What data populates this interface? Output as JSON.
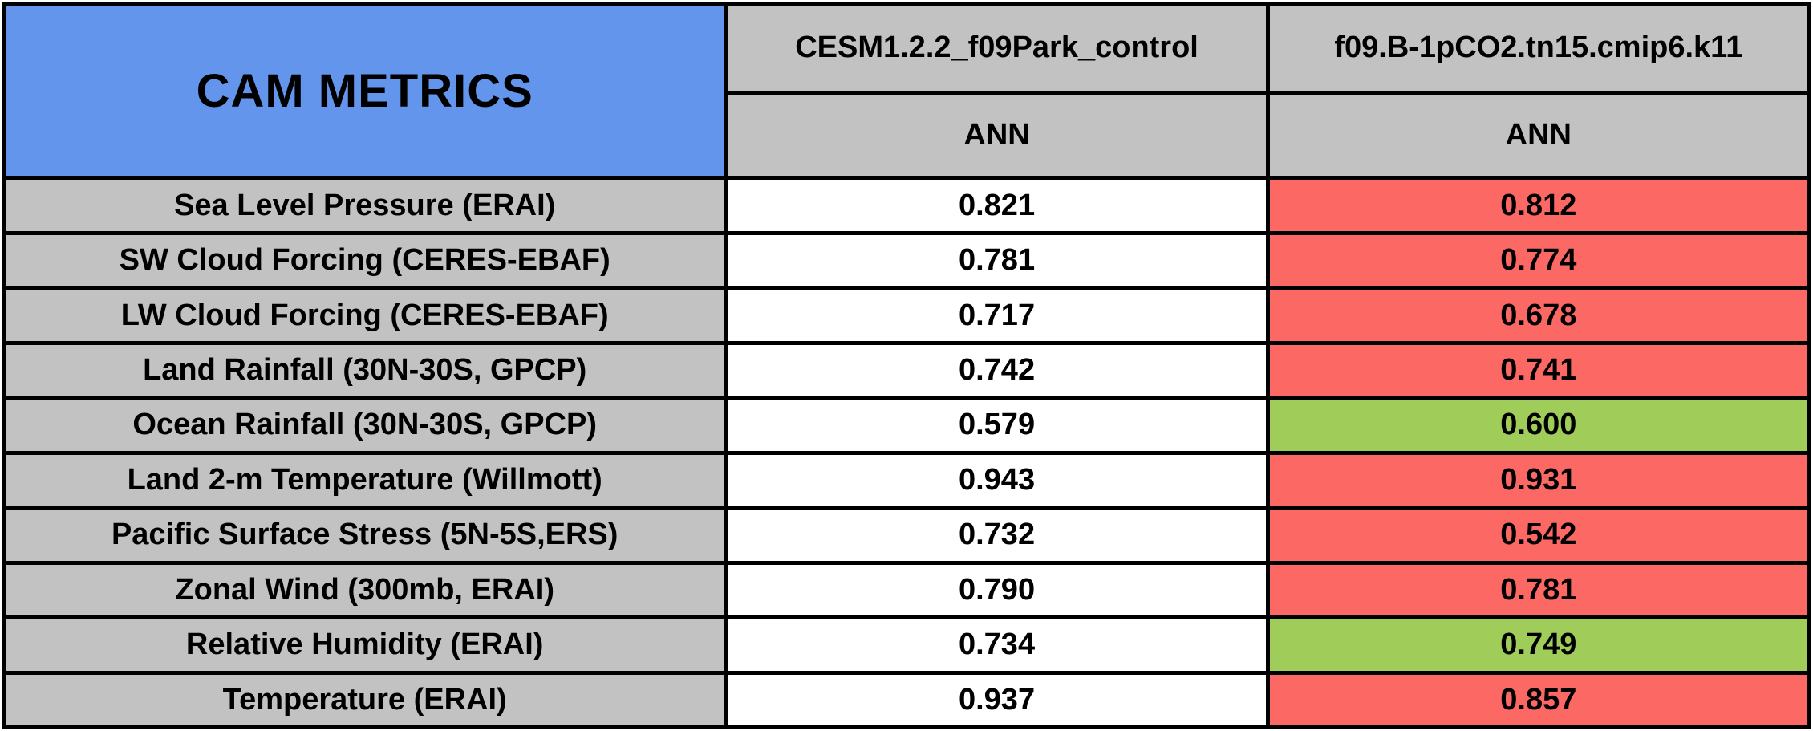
{
  "colors": {
    "blue_header": "#6495ED",
    "gray_header": "#C2C2C2",
    "white": "#FFFFFF",
    "red": "#FC6964",
    "green": "#A0CC5A",
    "border": "#000000"
  },
  "chart_data": {
    "type": "table",
    "title": "CAM METRICS",
    "legend_note_colors": {
      "worse_than_control": "red",
      "better_than_control": "green"
    },
    "columns": [
      {
        "model": "CESM1.2.2_f09Park_control",
        "season": "ANN"
      },
      {
        "model": "f09.B-1pCO2.tn15.cmip6.k11",
        "season": "ANN"
      }
    ],
    "rows": [
      {
        "metric": "Sea Level Pressure (ERAI)",
        "control_ann": "0.821",
        "experiment_ann": "0.812",
        "experiment_color": "red"
      },
      {
        "metric": "SW Cloud Forcing (CERES-EBAF)",
        "control_ann": "0.781",
        "experiment_ann": "0.774",
        "experiment_color": "red"
      },
      {
        "metric": "LW Cloud Forcing (CERES-EBAF)",
        "control_ann": "0.717",
        "experiment_ann": "0.678",
        "experiment_color": "red"
      },
      {
        "metric": "Land Rainfall (30N-30S, GPCP)",
        "control_ann": "0.742",
        "experiment_ann": "0.741",
        "experiment_color": "red"
      },
      {
        "metric": "Ocean Rainfall (30N-30S, GPCP)",
        "control_ann": "0.579",
        "experiment_ann": "0.600",
        "experiment_color": "green"
      },
      {
        "metric": "Land 2-m Temperature (Willmott)",
        "control_ann": "0.943",
        "experiment_ann": "0.931",
        "experiment_color": "red"
      },
      {
        "metric": "Pacific Surface Stress (5N-5S,ERS)",
        "control_ann": "0.732",
        "experiment_ann": "0.542",
        "experiment_color": "red"
      },
      {
        "metric": "Zonal Wind (300mb, ERAI)",
        "control_ann": "0.790",
        "experiment_ann": "0.781",
        "experiment_color": "red"
      },
      {
        "metric": "Relative Humidity (ERAI)",
        "control_ann": "0.734",
        "experiment_ann": "0.749",
        "experiment_color": "green"
      },
      {
        "metric": "Temperature (ERAI)",
        "control_ann": "0.937",
        "experiment_ann": "0.857",
        "experiment_color": "red"
      }
    ]
  }
}
